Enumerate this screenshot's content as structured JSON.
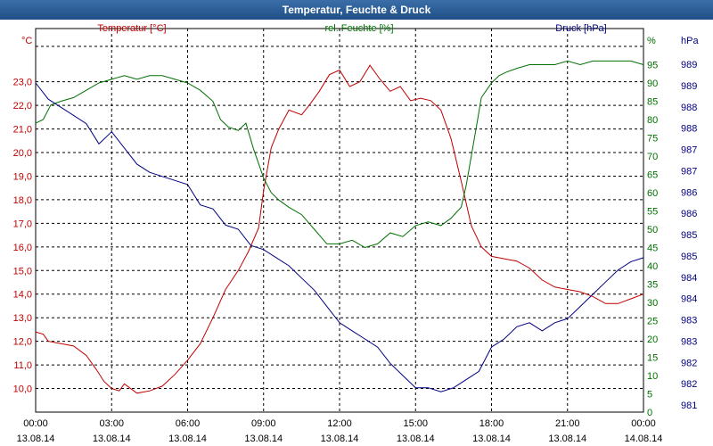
{
  "window": {
    "title": "Temperatur, Feuchte & Druck"
  },
  "chart_data": {
    "type": "line",
    "title": "Temperatur, Feuchte & Druck",
    "x": {
      "ticks": [
        {
          "time": "00:00",
          "date": "13.08.14"
        },
        {
          "time": "03:00",
          "date": "13.08.14"
        },
        {
          "time": "06:00",
          "date": "13.08.14"
        },
        {
          "time": "09:00",
          "date": "13.08.14"
        },
        {
          "time": "12:00",
          "date": "13.08.14"
        },
        {
          "time": "15:00",
          "date": "13.08.14"
        },
        {
          "time": "18:00",
          "date": "13.08.14"
        },
        {
          "time": "21:00",
          "date": "13.08.14"
        },
        {
          "time": "00:00",
          "date": "14.08.14"
        }
      ],
      "range_hours": [
        0,
        24
      ]
    },
    "axes": {
      "temperature": {
        "unit": "°C",
        "label": "Temperatur [°C]",
        "color": "#c00000",
        "range": [
          9.0,
          24.5
        ],
        "ticks": [
          "10,0",
          "11,0",
          "12,0",
          "13,0",
          "14,0",
          "15,0",
          "16,0",
          "17,0",
          "18,0",
          "19,0",
          "20,0",
          "21,0",
          "22,0",
          "23,0"
        ]
      },
      "humidity": {
        "unit": "%",
        "label": "rel. Feuchte [%]",
        "color": "#007000",
        "range": [
          0,
          100
        ],
        "ticks": [
          "0",
          "5",
          "10",
          "15",
          "20",
          "25",
          "30",
          "35",
          "40",
          "45",
          "50",
          "55",
          "60",
          "65",
          "70",
          "75",
          "80",
          "85",
          "90",
          "95"
        ]
      },
      "pressure": {
        "unit": "hPa",
        "label": "Druck [hPa]",
        "color": "#000080",
        "range": [
          981,
          990
        ],
        "ticks": [
          "981",
          "982",
          "982",
          "983",
          "983",
          "984",
          "984",
          "985",
          "985",
          "986",
          "986",
          "987",
          "987",
          "988",
          "988",
          "989",
          "989"
        ]
      }
    },
    "series": [
      {
        "name": "Temperatur",
        "axis": "temperature",
        "color": "#c00000",
        "points": [
          [
            0,
            12.4
          ],
          [
            0.3,
            12.3
          ],
          [
            0.5,
            12.0
          ],
          [
            1.0,
            11.9
          ],
          [
            1.5,
            11.8
          ],
          [
            2.0,
            11.4
          ],
          [
            2.4,
            10.8
          ],
          [
            2.7,
            10.3
          ],
          [
            3.0,
            10.0
          ],
          [
            3.3,
            9.9
          ],
          [
            3.5,
            10.2
          ],
          [
            4.0,
            9.8
          ],
          [
            4.5,
            9.9
          ],
          [
            5.0,
            10.1
          ],
          [
            5.5,
            10.6
          ],
          [
            6.0,
            11.2
          ],
          [
            6.5,
            11.9
          ],
          [
            7.0,
            13.0
          ],
          [
            7.5,
            14.2
          ],
          [
            8.0,
            15.0
          ],
          [
            8.4,
            15.8
          ],
          [
            8.8,
            16.8
          ],
          [
            9.0,
            18.4
          ],
          [
            9.3,
            20.2
          ],
          [
            9.6,
            21.0
          ],
          [
            10.0,
            21.8
          ],
          [
            10.5,
            21.6
          ],
          [
            10.8,
            22.0
          ],
          [
            11.2,
            22.6
          ],
          [
            11.6,
            23.3
          ],
          [
            12.0,
            23.5
          ],
          [
            12.4,
            22.8
          ],
          [
            12.8,
            23.0
          ],
          [
            13.2,
            23.7
          ],
          [
            13.6,
            23.1
          ],
          [
            14.0,
            22.6
          ],
          [
            14.4,
            22.8
          ],
          [
            14.8,
            22.2
          ],
          [
            15.2,
            22.3
          ],
          [
            15.6,
            22.2
          ],
          [
            16.0,
            21.8
          ],
          [
            16.4,
            20.6
          ],
          [
            16.8,
            18.8
          ],
          [
            17.2,
            16.9
          ],
          [
            17.6,
            16.0
          ],
          [
            18.0,
            15.6
          ],
          [
            18.5,
            15.5
          ],
          [
            19.0,
            15.4
          ],
          [
            19.5,
            15.1
          ],
          [
            20.0,
            14.6
          ],
          [
            20.5,
            14.3
          ],
          [
            21.0,
            14.2
          ],
          [
            21.5,
            14.1
          ],
          [
            22.0,
            13.9
          ],
          [
            22.5,
            13.6
          ],
          [
            23.0,
            13.6
          ],
          [
            23.5,
            13.8
          ],
          [
            24.0,
            14.0
          ]
        ]
      },
      {
        "name": "rel. Feuchte",
        "axis": "humidity",
        "color": "#007000",
        "points": [
          [
            0,
            79
          ],
          [
            0.3,
            80
          ],
          [
            0.6,
            84
          ],
          [
            1.0,
            85
          ],
          [
            1.5,
            86
          ],
          [
            2.0,
            88
          ],
          [
            2.5,
            90
          ],
          [
            3.0,
            91
          ],
          [
            3.5,
            92
          ],
          [
            4.0,
            91
          ],
          [
            4.5,
            92
          ],
          [
            5.0,
            92
          ],
          [
            5.5,
            91
          ],
          [
            6.0,
            90
          ],
          [
            6.5,
            88
          ],
          [
            7.0,
            85
          ],
          [
            7.3,
            80
          ],
          [
            7.6,
            78
          ],
          [
            8.0,
            77
          ],
          [
            8.3,
            79
          ],
          [
            8.6,
            72
          ],
          [
            9.0,
            64
          ],
          [
            9.3,
            60
          ],
          [
            9.6,
            58
          ],
          [
            10.0,
            56
          ],
          [
            10.5,
            54
          ],
          [
            11.0,
            50
          ],
          [
            11.5,
            46
          ],
          [
            12.0,
            46
          ],
          [
            12.5,
            47
          ],
          [
            13.0,
            45
          ],
          [
            13.5,
            46
          ],
          [
            14.0,
            49
          ],
          [
            14.5,
            48
          ],
          [
            15.0,
            51
          ],
          [
            15.5,
            52
          ],
          [
            16.0,
            51
          ],
          [
            16.4,
            53
          ],
          [
            16.8,
            56
          ],
          [
            17.0,
            62
          ],
          [
            17.2,
            70
          ],
          [
            17.4,
            78
          ],
          [
            17.6,
            86
          ],
          [
            17.8,
            88
          ],
          [
            18.0,
            90
          ],
          [
            18.3,
            92
          ],
          [
            18.6,
            93
          ],
          [
            19.0,
            94
          ],
          [
            19.5,
            95
          ],
          [
            20.0,
            95
          ],
          [
            20.5,
            95
          ],
          [
            21.0,
            96
          ],
          [
            21.5,
            95
          ],
          [
            22.0,
            96
          ],
          [
            22.5,
            96
          ],
          [
            23.0,
            96
          ],
          [
            23.5,
            96
          ],
          [
            24.0,
            95
          ]
        ]
      },
      {
        "name": "Druck",
        "axis": "pressure",
        "color": "#000080",
        "points": [
          [
            0,
            989.1
          ],
          [
            0.5,
            988.7
          ],
          [
            1.0,
            988.5
          ],
          [
            1.5,
            988.3
          ],
          [
            2.0,
            988.1
          ],
          [
            2.5,
            987.6
          ],
          [
            3.0,
            987.9
          ],
          [
            3.5,
            987.5
          ],
          [
            4.0,
            987.1
          ],
          [
            4.5,
            986.9
          ],
          [
            5.0,
            986.8
          ],
          [
            5.5,
            986.7
          ],
          [
            6.0,
            986.6
          ],
          [
            6.5,
            986.1
          ],
          [
            7.0,
            986.0
          ],
          [
            7.5,
            985.6
          ],
          [
            8.0,
            985.5
          ],
          [
            8.5,
            985.1
          ],
          [
            9.0,
            985.0
          ],
          [
            9.5,
            984.8
          ],
          [
            10.0,
            984.6
          ],
          [
            10.5,
            984.3
          ],
          [
            11.0,
            984.0
          ],
          [
            11.5,
            983.6
          ],
          [
            12.0,
            983.2
          ],
          [
            12.5,
            983.0
          ],
          [
            13.0,
            982.8
          ],
          [
            13.5,
            982.6
          ],
          [
            14.0,
            982.2
          ],
          [
            14.5,
            981.9
          ],
          [
            15.0,
            981.6
          ],
          [
            15.5,
            981.6
          ],
          [
            16.0,
            981.5
          ],
          [
            16.5,
            981.6
          ],
          [
            17.0,
            981.8
          ],
          [
            17.5,
            982.0
          ],
          [
            18.0,
            982.6
          ],
          [
            18.5,
            982.8
          ],
          [
            19.0,
            983.1
          ],
          [
            19.5,
            983.2
          ],
          [
            20.0,
            983.0
          ],
          [
            20.5,
            983.2
          ],
          [
            21.0,
            983.3
          ],
          [
            21.5,
            983.6
          ],
          [
            22.0,
            983.9
          ],
          [
            22.5,
            984.2
          ],
          [
            23.0,
            984.5
          ],
          [
            23.5,
            984.7
          ],
          [
            24.0,
            984.8
          ]
        ]
      }
    ]
  }
}
